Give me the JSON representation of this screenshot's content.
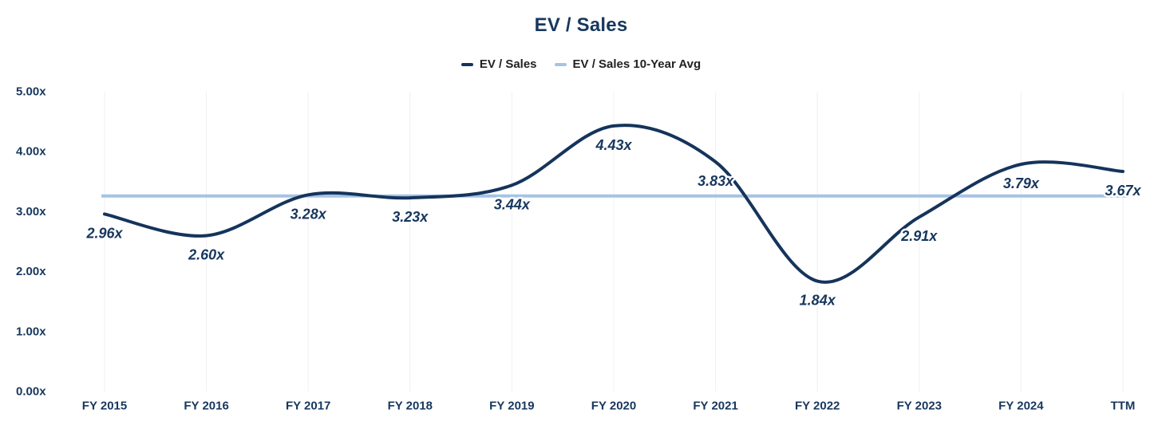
{
  "chart_data": {
    "type": "line",
    "title": "EV / Sales",
    "categories": [
      "FY 2015",
      "FY 2016",
      "FY 2017",
      "FY 2018",
      "FY 2019",
      "FY 2020",
      "FY 2021",
      "FY 2022",
      "FY 2023",
      "FY 2024",
      "TTM"
    ],
    "series": [
      {
        "name": "EV / Sales",
        "type": "smooth-line",
        "color": "#15345C",
        "values": [
          2.96,
          2.6,
          3.28,
          3.23,
          3.44,
          4.43,
          3.83,
          1.84,
          2.91,
          3.79,
          3.67
        ],
        "point_labels": [
          "2.96x",
          "2.60x",
          "3.28x",
          "3.23x",
          "3.44x",
          "4.43x",
          "3.83x",
          "1.84x",
          "2.91x",
          "3.79x",
          "3.67x"
        ]
      },
      {
        "name": "EV / Sales 10-Year Avg",
        "type": "horizontal-line",
        "color": "#A5C4E4",
        "value_estimate": 3.26
      }
    ],
    "y_axis": {
      "tick_labels": [
        "5.00x",
        "4.00x",
        "3.00x",
        "2.00x",
        "1.00x",
        "0.00x"
      ],
      "tick_values": [
        5,
        4,
        3,
        2,
        1,
        0
      ],
      "min": 0,
      "max": 5
    },
    "legend_position": "top-center",
    "grid": "faint-vertical-category-lines"
  },
  "colors": {
    "title": "#17375E",
    "axis_label": "#17375E",
    "data_label": "#17375E",
    "legend_text": "#222222",
    "gridline": "#F0F0F5",
    "background": "#FFFFFF"
  }
}
